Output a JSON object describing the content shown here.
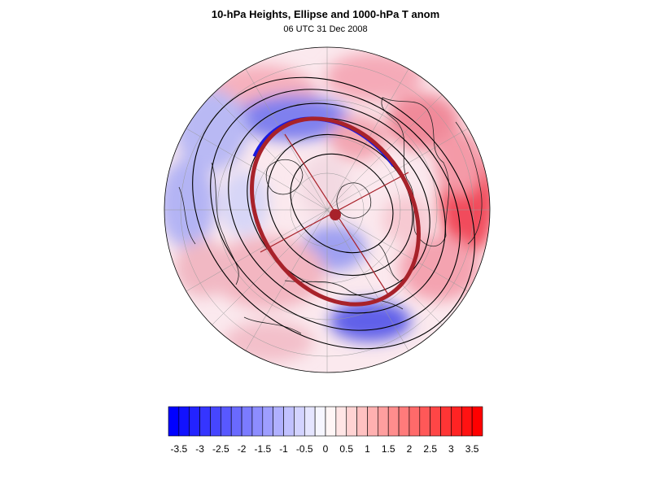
{
  "title": "10-hPa Heights, Ellipse and 1000-hPa T anom",
  "subtitle": "06 UTC 31 Dec 2008",
  "colorbar": {
    "tick_labels": [
      "-3.5",
      "-3",
      "-2.5",
      "-2",
      "-1.5",
      "-1",
      "-0.5",
      "0",
      "0.5",
      "1",
      "1.5",
      "2",
      "2.5",
      "3",
      "3.5"
    ],
    "min": -3.75,
    "max": 3.75,
    "step": 0.25,
    "neg_color": "#0000ff",
    "pos_color": "#ff0000"
  },
  "map": {
    "projection": "north-polar stereographic",
    "ellipse_color": "#a8222a",
    "edge_color_blue": "#1a1adf",
    "contour_color": "#000000"
  }
}
